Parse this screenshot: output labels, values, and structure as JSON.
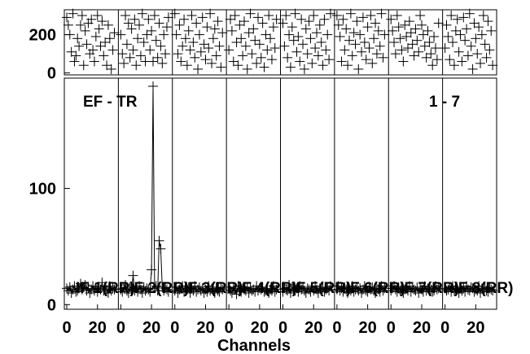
{
  "chart_data": {
    "type": "scatter",
    "title_left": "EF - TR",
    "title_right": "1 - 7",
    "xlabel": "Channels",
    "x_ticks": [
      "0",
      "20"
    ],
    "channels_per_panel": 32,
    "top_ylim": [
      -10,
      330
    ],
    "top_yticks": [
      "0",
      "200"
    ],
    "bottom_ylim": [
      -4,
      195
    ],
    "bottom_yticks": [
      "0",
      "100"
    ],
    "panels": [
      {
        "label": "IF 1(RR)",
        "amp": [
          14,
          12,
          15,
          10,
          13,
          16,
          11,
          12,
          14,
          18,
          13,
          15,
          17,
          12,
          14,
          10,
          13,
          16,
          12,
          15,
          11,
          14,
          13,
          19,
          12,
          15,
          13,
          10,
          16,
          12,
          14,
          13
        ],
        "phase": [
          290,
          250,
          200,
          110,
          310,
          60,
          90,
          180,
          140,
          250,
          300,
          40,
          220,
          150,
          260,
          100,
          280,
          120,
          60,
          190,
          300,
          230,
          140,
          270,
          90,
          160,
          40,
          250,
          180,
          20,
          120,
          210
        ]
      },
      {
        "label": "IF 2(RR)",
        "amp": [
          13,
          11,
          14,
          17,
          12,
          10,
          15,
          13,
          25,
          12,
          14,
          11,
          16,
          13,
          10,
          15,
          12,
          14,
          13,
          11,
          30,
          188,
          14,
          16,
          12,
          55,
          48,
          15,
          12,
          14,
          13,
          11
        ],
        "phase": [
          200,
          100,
          50,
          300,
          150,
          260,
          80,
          230,
          120,
          280,
          40,
          180,
          250,
          90,
          310,
          160,
          60,
          200,
          280,
          120,
          220,
          60,
          300,
          170,
          80,
          260,
          140,
          50,
          200,
          100,
          240,
          290
        ]
      },
      {
        "label": "IF 3(RR)",
        "amp": [
          12,
          15,
          10,
          13,
          14,
          16,
          11,
          12,
          13,
          15,
          10,
          14,
          12,
          16,
          11,
          13,
          15,
          12,
          14,
          10,
          13,
          11,
          16,
          12,
          14,
          13,
          10,
          15,
          12,
          11,
          14,
          13
        ],
        "phase": [
          310,
          200,
          100,
          250,
          60,
          140,
          280,
          180,
          40,
          220,
          120,
          300,
          160,
          80,
          260,
          20,
          200,
          110,
          290,
          150,
          70,
          240,
          130,
          310,
          50,
          180,
          230,
          90,
          270,
          140,
          30,
          210
        ]
      },
      {
        "label": "IF 4(RR)",
        "amp": [
          15,
          12,
          10,
          14,
          13,
          9,
          16,
          12,
          11,
          14,
          13,
          12,
          15,
          10,
          14,
          12,
          13,
          11,
          16,
          12,
          14,
          13,
          15,
          11,
          12,
          14,
          10,
          13,
          12,
          16,
          11,
          13
        ],
        "phase": [
          120,
          280,
          220,
          60,
          300,
          160,
          40,
          250,
          180,
          90,
          270,
          140,
          20,
          210,
          310,
          100,
          230,
          170,
          50,
          290,
          150,
          80,
          260,
          30,
          200,
          120,
          300,
          180,
          70,
          240,
          130,
          280
        ]
      },
      {
        "label": "IF 5(RR)",
        "amp": [
          11,
          14,
          13,
          12,
          17,
          10,
          15,
          13,
          12,
          14,
          11,
          16,
          13,
          15,
          12,
          10,
          14,
          13,
          11,
          15,
          12,
          16,
          13,
          10,
          14,
          12,
          15,
          11,
          13,
          14,
          12,
          16
        ],
        "phase": [
          260,
          140,
          300,
          80,
          200,
          30,
          240,
          170,
          310,
          110,
          190,
          60,
          280,
          150,
          20,
          230,
          100,
          270,
          180,
          50,
          300,
          130,
          210,
          90,
          250,
          160,
          40,
          280,
          120,
          200,
          70,
          310
        ]
      },
      {
        "label": "IF 6(RR)",
        "amp": [
          13,
          16,
          12,
          14,
          11,
          15,
          13,
          10,
          14,
          12,
          16,
          11,
          13,
          15,
          12,
          14,
          10,
          13,
          16,
          12,
          11,
          14,
          13,
          15,
          12,
          10,
          14,
          13,
          11,
          16,
          12,
          14
        ],
        "phase": [
          300,
          250,
          190,
          60,
          280,
          120,
          230,
          40,
          170,
          310,
          90,
          210,
          150,
          270,
          20,
          200,
          110,
          290,
          160,
          70,
          240,
          130,
          300,
          50,
          180,
          260,
          100,
          220,
          140,
          310,
          80,
          200
        ]
      },
      {
        "label": "IF 7(RR)",
        "amp": [
          12,
          14,
          16,
          13,
          11,
          15,
          12,
          14,
          10,
          13,
          15,
          12,
          16,
          11,
          14,
          13,
          12,
          15,
          10,
          14,
          13,
          11,
          16,
          12,
          14,
          15,
          13,
          11,
          12,
          16,
          13,
          14
        ],
        "phase": [
          280,
          220,
          160,
          100,
          300,
          240,
          180,
          120,
          60,
          250,
          190,
          130,
          270,
          210,
          150,
          90,
          230,
          170,
          110,
          300,
          250,
          200,
          140,
          80,
          220,
          160,
          100,
          40,
          190,
          130,
          70,
          260
        ]
      },
      {
        "label": "IF 8(RR)",
        "amp": [
          14,
          12,
          13,
          15,
          11,
          16,
          12,
          14,
          13,
          10,
          15,
          12,
          14,
          11,
          16,
          13,
          12,
          15,
          14,
          11,
          13,
          12,
          16,
          10,
          14,
          13,
          15,
          12,
          11,
          14,
          13,
          12
        ],
        "phase": [
          130,
          250,
          190,
          70,
          300,
          160,
          40,
          220,
          280,
          110,
          200,
          60,
          290,
          170,
          230,
          90,
          310,
          140,
          20,
          260,
          180,
          100,
          240,
          50,
          200,
          300,
          150,
          80,
          270,
          120,
          220,
          40
        ]
      }
    ]
  }
}
